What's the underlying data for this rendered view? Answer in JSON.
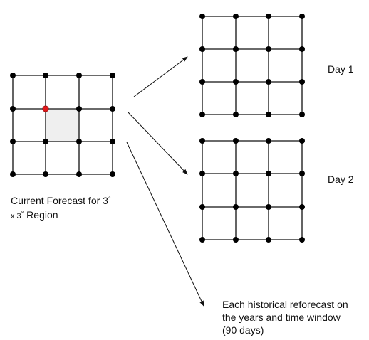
{
  "current": {
    "line1": "Current Forecast for 3",
    "line2_prefix": "x 3",
    "line2_suffix": " Region",
    "degree": "°"
  },
  "day1_label": "Day 1",
  "day2_label": "Day 2",
  "historical": {
    "line1": "Each historical reforecast on",
    "line2": "the years and time window",
    "line3": "(90 days)"
  },
  "colors": {
    "line": "#111111",
    "node": "#000000",
    "highlight_node": "#e0191b",
    "shaded_cell": "#efefef"
  }
}
